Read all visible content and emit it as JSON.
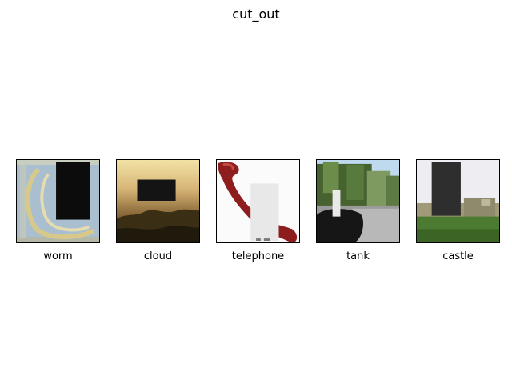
{
  "figure": {
    "title": "cut_out"
  },
  "panels": [
    {
      "label": "worm"
    },
    {
      "label": "cloud"
    },
    {
      "label": "telephone"
    },
    {
      "label": "tank"
    },
    {
      "label": "castle"
    }
  ]
}
